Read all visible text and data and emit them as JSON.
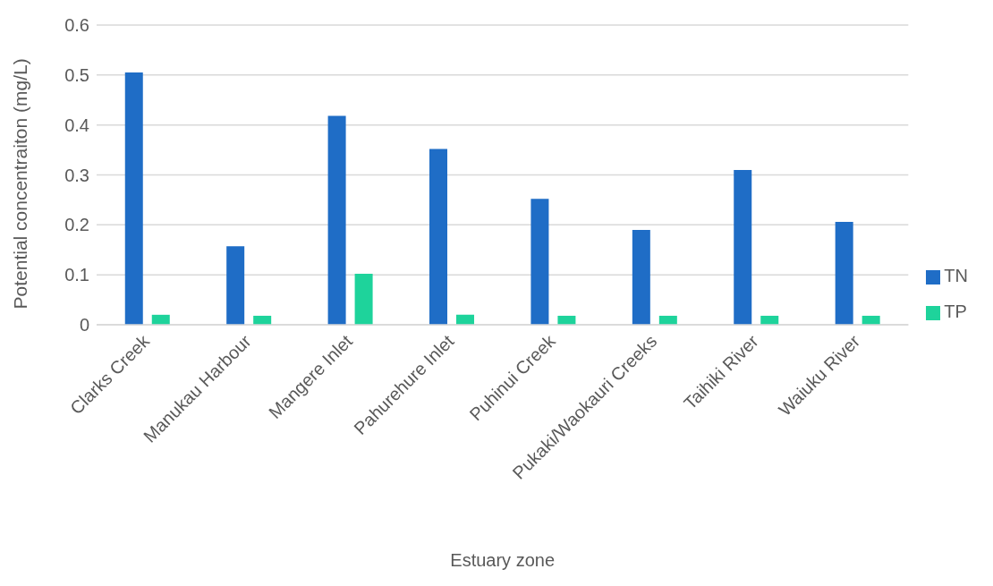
{
  "chart_data": {
    "type": "bar",
    "xlabel": "Estuary zone",
    "ylabel": "Potential concentraiton (mg/L)",
    "categories": [
      "Clarks Creek",
      "Manukau Harbour",
      "Mangere Inlet",
      "Pahurehure Inlet",
      "Puhinui Creek",
      "Pukaki/Waokauri Creeks",
      "Taihiki River",
      "Waiuku River"
    ],
    "series": [
      {
        "name": "TN",
        "color": "#1f6dc6",
        "values": [
          0.505,
          0.157,
          0.418,
          0.352,
          0.252,
          0.19,
          0.31,
          0.206
        ]
      },
      {
        "name": "TP",
        "color": "#1ed39b",
        "values": [
          0.02,
          0.018,
          0.102,
          0.02,
          0.018,
          0.018,
          0.018,
          0.018
        ]
      }
    ],
    "ylim": [
      0,
      0.6
    ],
    "yticks": [
      0,
      0.1,
      0.2,
      0.3,
      0.4,
      0.5,
      0.6
    ],
    "grid": "y",
    "legend": "right"
  }
}
